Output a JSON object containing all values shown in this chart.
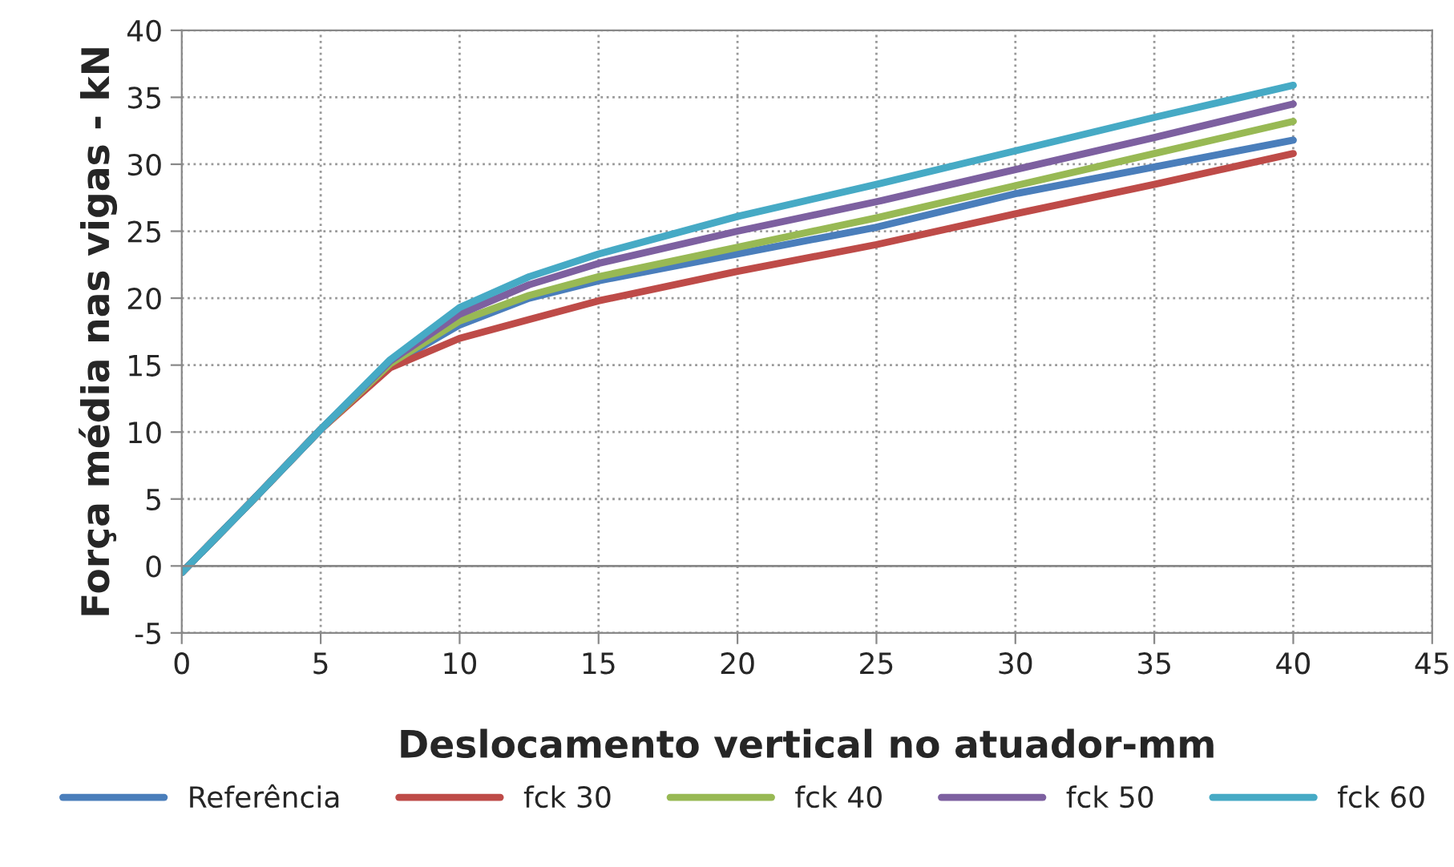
{
  "chart_data": {
    "type": "line",
    "xlabel": "Deslocamento vertical no atuador-mm",
    "ylabel": "Força média nas vigas - kN",
    "x": [
      0,
      2.5,
      5,
      7.5,
      10,
      12.5,
      15,
      20,
      25,
      30,
      35,
      40
    ],
    "series": [
      {
        "name": "Referência",
        "color": "#4a7ebb",
        "values": [
          -0.5,
          4.8,
          10.2,
          15.0,
          18.0,
          20.0,
          21.3,
          23.3,
          25.3,
          27.8,
          29.8,
          31.8
        ]
      },
      {
        "name": "fck 30",
        "color": "#be4b48",
        "values": [
          -0.5,
          4.8,
          10.2,
          14.8,
          17.0,
          18.4,
          19.8,
          22.0,
          24.0,
          26.3,
          28.5,
          30.8
        ]
      },
      {
        "name": "fck 40",
        "color": "#98b954",
        "values": [
          -0.5,
          4.8,
          10.2,
          15.1,
          18.3,
          20.2,
          21.6,
          23.8,
          26.0,
          28.4,
          30.8,
          33.2
        ]
      },
      {
        "name": "fck 50",
        "color": "#7d60a0",
        "values": [
          -0.5,
          4.8,
          10.2,
          15.3,
          18.8,
          21.0,
          22.6,
          25.0,
          27.2,
          29.6,
          32.0,
          34.5
        ]
      },
      {
        "name": "fck 60",
        "color": "#46aac5",
        "values": [
          -0.5,
          4.8,
          10.2,
          15.4,
          19.3,
          21.6,
          23.3,
          26.1,
          28.5,
          31.0,
          33.5,
          35.9
        ]
      }
    ],
    "xlim": [
      0,
      45
    ],
    "xticks": [
      0,
      5,
      10,
      15,
      20,
      25,
      30,
      35,
      40,
      45
    ],
    "ylim": [
      -5,
      40
    ],
    "yticks": [
      -5,
      0,
      5,
      10,
      15,
      20,
      25,
      30,
      35,
      40
    ],
    "grid": true,
    "legend": "bottom",
    "marker": "none",
    "line_style": "solid"
  }
}
